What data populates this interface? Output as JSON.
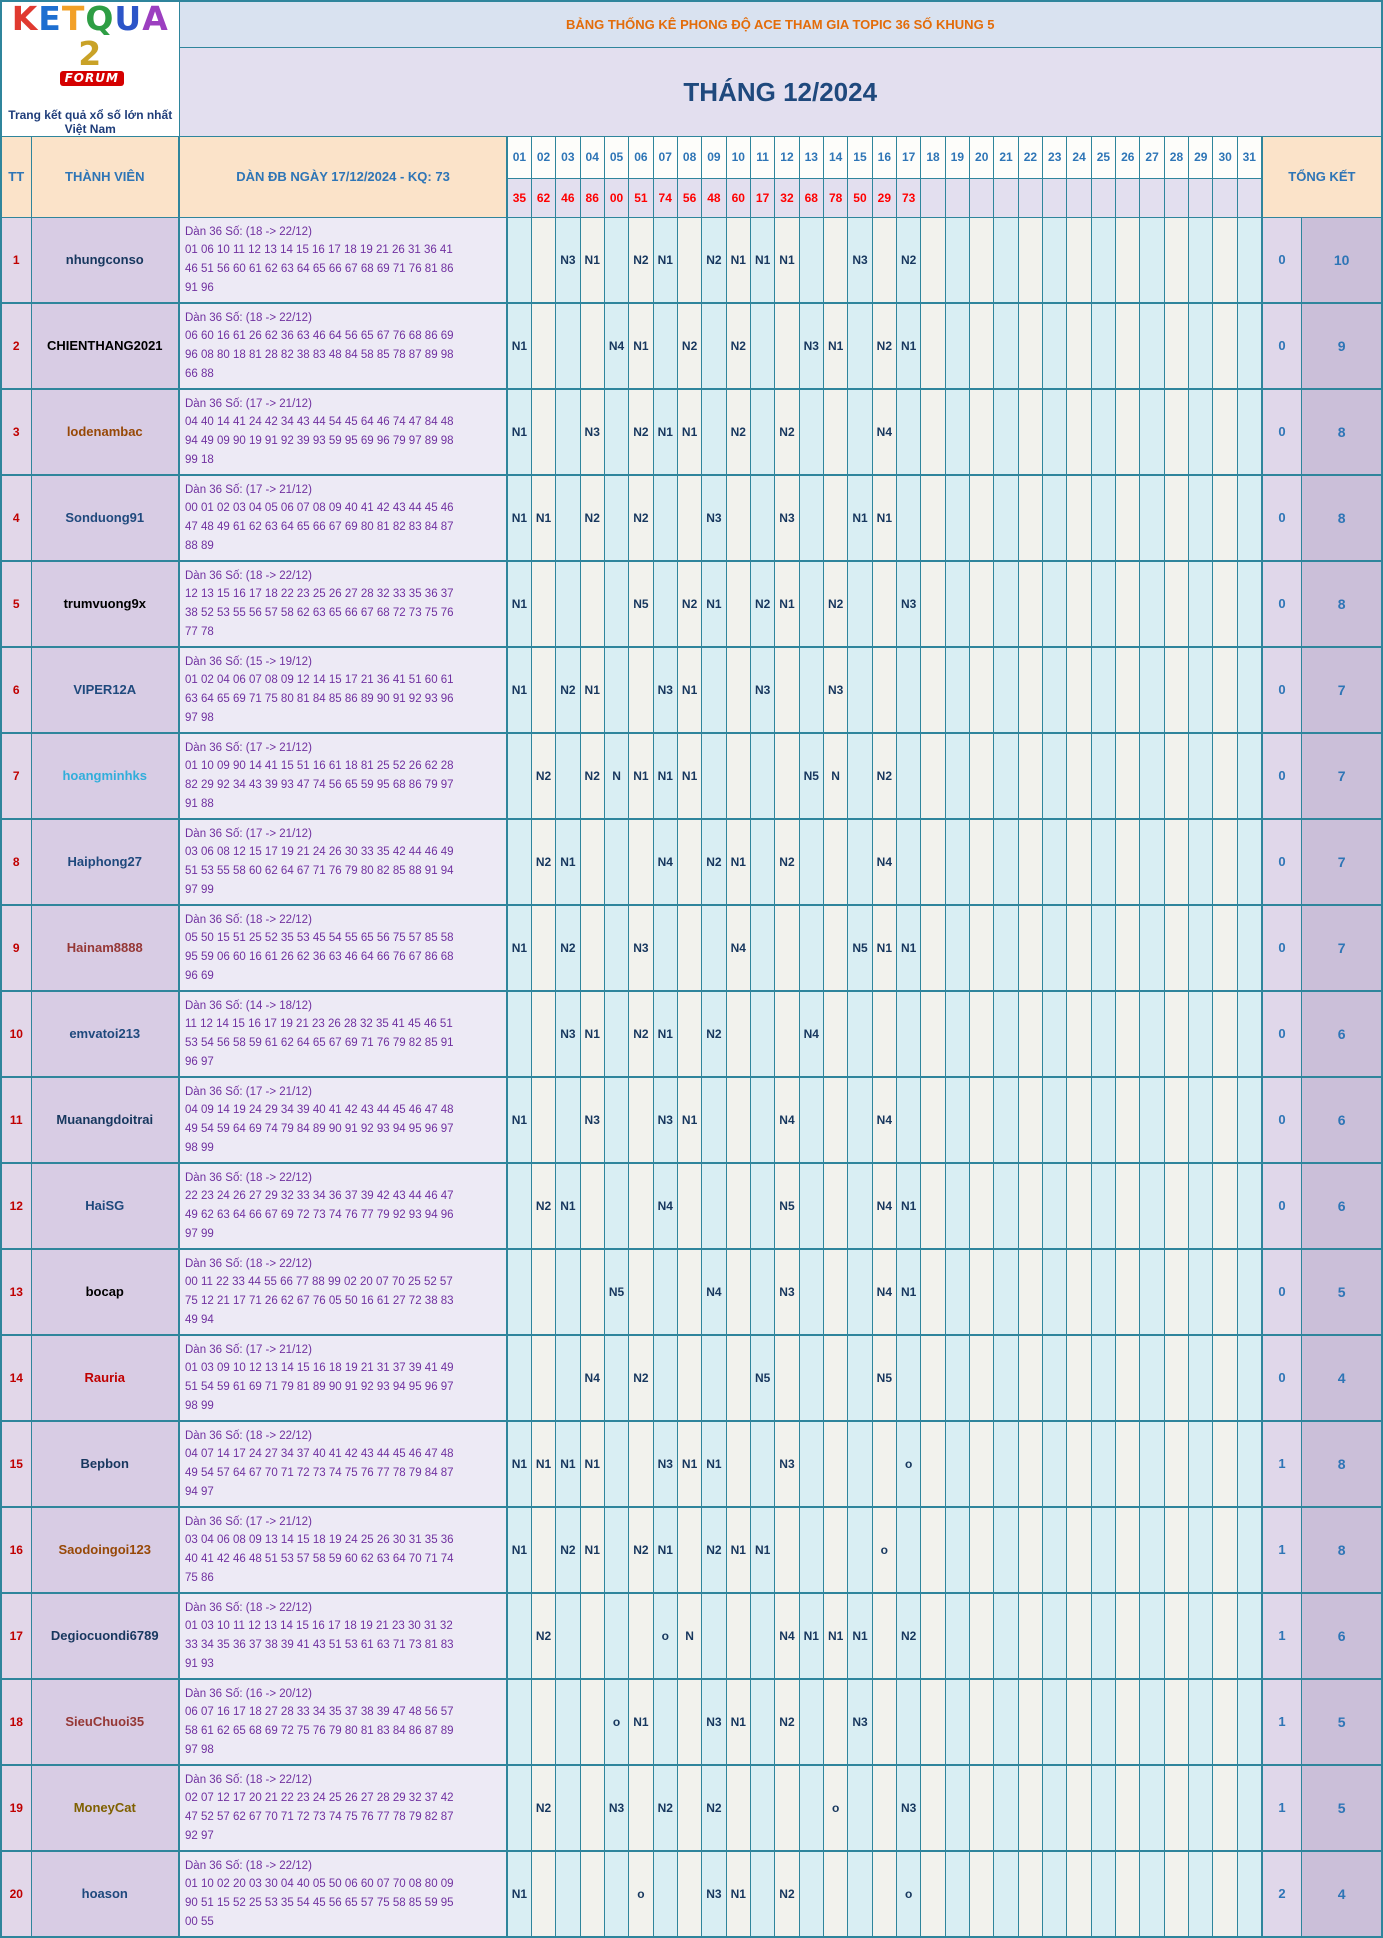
{
  "logo": {
    "brand_letters": [
      {
        "ch": "K",
        "color": "#E03A30"
      },
      {
        "ch": "E",
        "color": "#1E6FD0"
      },
      {
        "ch": "T",
        "color": "#F2A027"
      },
      {
        "ch": "Q",
        "color": "#2E9E44"
      },
      {
        "ch": "U",
        "color": "#2C55C8"
      },
      {
        "ch": "A",
        "color": "#9C3FC0"
      },
      {
        "ch": "2",
        "color": "#C9A227"
      }
    ],
    "forum_badge": "FORUM",
    "tagline": "Trang kết quả xổ số lớn nhất Việt Nam"
  },
  "titles": {
    "banner": "BẢNG THỐNG KÊ PHONG ĐỘ ACE THAM GIA TOPIC 36 SỐ KHUNG 5",
    "month": "THÁNG 12/2024"
  },
  "header": {
    "tt": "TT",
    "member": "THÀNH VIÊN",
    "dan": "DÀN ĐB NGÀY 17/12/2024 - KQ: 73",
    "total": "TỔNG KẾT"
  },
  "days": [
    "01",
    "02",
    "03",
    "04",
    "05",
    "06",
    "07",
    "08",
    "09",
    "10",
    "11",
    "12",
    "13",
    "14",
    "15",
    "16",
    "17",
    "18",
    "19",
    "20",
    "21",
    "22",
    "23",
    "24",
    "25",
    "26",
    "27",
    "28",
    "29",
    "30",
    "31"
  ],
  "day_values": [
    "35",
    "62",
    "46",
    "86",
    "00",
    "51",
    "74",
    "56",
    "48",
    "60",
    "17",
    "32",
    "68",
    "78",
    "50",
    "29",
    "73",
    "",
    "",
    "",
    "",
    "",
    "",
    "",
    "",
    "",
    "",
    "",
    "",
    "",
    ""
  ],
  "colors": {
    "border_teal": "#2F859C",
    "banner_text": "#E36C09",
    "month_text": "#1F497D",
    "day_value_red": "#FF0000",
    "mark_blue": "#17375E",
    "dan_purple": "#7030A0",
    "tt_red": "#C00000",
    "total_blue": "#2E75B6"
  },
  "rows": [
    {
      "tt": "1",
      "name": "nhungconso",
      "name_color": "#17375E",
      "range": "Dàn 36 Số: (18 -> 22/12)",
      "nums": [
        "01 06 10 11 12 13 14 15 16 17 18 19 21 26 31 36 41",
        "46 51 56 60 61 62 63 64 65 66 67 68 69 71 76 81 86",
        "91 96"
      ],
      "marks": {
        "3": "N3",
        "4": "N1",
        "6": "N2",
        "7": "N1",
        "9": "N2",
        "10": "N1",
        "11": "N1",
        "12": "N1",
        "15": "N3",
        "17": "N2"
      },
      "totals": [
        "0",
        "10"
      ]
    },
    {
      "tt": "2",
      "name": "CHIENTHANG2021",
      "name_color": "#000000",
      "range": "Dàn 36 Số: (18 -> 22/12)",
      "nums": [
        "06 60 16 61 26 62 36 63 46 64 56 65 67 76 68 86 69",
        "96 08 80 18 81 28 82 38 83 48 84 58 85 78 87 89 98",
        "66 88"
      ],
      "marks": {
        "1": "N1",
        "5": "N4",
        "6": "N1",
        "8": "N2",
        "10": "N2",
        "13": "N3",
        "14": "N1",
        "16": "N2",
        "17": "N1"
      },
      "totals": [
        "0",
        "9"
      ]
    },
    {
      "tt": "3",
      "name": "lodenambac",
      "name_color": "#974806",
      "range": "Dàn 36 Số: (17 -> 21/12)",
      "nums": [
        "04 40 14 41 24 42 34 43 44 54 45 64 46 74 47 84 48",
        "94 49 09 90 19 91 92 39 93 59 95 69 96 79 97 89 98",
        "99 18"
      ],
      "marks": {
        "1": "N1",
        "4": "N3",
        "6": "N2",
        "7": "N1",
        "8": "N1",
        "10": "N2",
        "12": "N2",
        "16": "N4"
      },
      "totals": [
        "0",
        "8"
      ]
    },
    {
      "tt": "4",
      "name": "Sonduong91",
      "name_color": "#1F497D",
      "range": "Dàn 36 Số: (17 -> 21/12)",
      "nums": [
        "00 01 02 03 04 05 06 07 08 09 40 41 42 43 44 45 46",
        "47 48 49 61 62 63 64 65 66 67 69 80 81 82 83 84 87",
        "88 89"
      ],
      "marks": {
        "1": "N1",
        "2": "N1",
        "4": "N2",
        "6": "N2",
        "9": "N3",
        "12": "N3",
        "15": "N1",
        "16": "N1"
      },
      "totals": [
        "0",
        "8"
      ]
    },
    {
      "tt": "5",
      "name": "trumvuong9x",
      "name_color": "#000000",
      "range": "Dàn 36 Số: (18 -> 22/12)",
      "nums": [
        "12 13 15 16 17 18 22 23 25 26 27 28 32 33 35 36 37",
        "38 52 53 55 56 57 58 62 63 65 66 67 68 72 73 75 76",
        "77 78"
      ],
      "marks": {
        "1": "N1",
        "6": "N5",
        "8": "N2",
        "9": "N1",
        "11": "N2",
        "12": "N1",
        "14": "N2",
        "17": "N3"
      },
      "totals": [
        "0",
        "8"
      ]
    },
    {
      "tt": "6",
      "name": "VIPER12A",
      "name_color": "#1F497D",
      "range": "Dàn 36 Số: (15 -> 19/12)",
      "nums": [
        "01 02 04 06 07 08 09 12 14 15 17 21 36 41 51 60 61",
        "63 64 65 69 71 75 80 81 84 85 86 89 90 91 92 93 96",
        "97 98"
      ],
      "marks": {
        "1": "N1",
        "3": "N2",
        "4": "N1",
        "7": "N3",
        "8": "N1",
        "11": "N3",
        "14": "N3"
      },
      "totals": [
        "0",
        "7"
      ]
    },
    {
      "tt": "7",
      "name": "hoangminhks",
      "name_color": "#31AEDB",
      "range": "Dàn 36 Số: (17 -> 21/12)",
      "nums": [
        "01 10 09 90 14 41 15 51 16 61 18 81 25 52 26 62 28",
        "82 29 92 34 43 39 93 47 74 56 65 59 95 68 86 79 97",
        "91 88"
      ],
      "marks": {
        "2": "N2",
        "4": "N2",
        "5": "N",
        "6": "N1",
        "7": "N1",
        "8": "N1",
        "13": "N5",
        "14": "N",
        "16": "N2"
      },
      "totals": [
        "0",
        "7"
      ]
    },
    {
      "tt": "8",
      "name": "Haiphong27",
      "name_color": "#1F497D",
      "range": "Dàn 36 Số: (17 -> 21/12)",
      "nums": [
        "03 06 08 12 15 17 19 21 24 26 30 33 35 42 44 46 49",
        "51 53 55 58 60 62 64 67 71 76 79 80 82 85 88 91 94",
        "97 99"
      ],
      "marks": {
        "2": "N2",
        "3": "N1",
        "7": "N4",
        "9": "N2",
        "10": "N1",
        "12": "N2",
        "16": "N4"
      },
      "totals": [
        "0",
        "7"
      ]
    },
    {
      "tt": "9",
      "name": "Hainam8888",
      "name_color": "#953735",
      "range": "Dàn 36 Số: (18 -> 22/12)",
      "nums": [
        "05 50 15 51 25 52 35 53 45 54 55 65 56 75 57 85 58",
        "95 59 06 60 16 61 26 62 36 63 46 64 66 76 67 86 68",
        "96 69"
      ],
      "marks": {
        "1": "N1",
        "3": "N2",
        "6": "N3",
        "10": "N4",
        "15": "N5",
        "16": "N1",
        "17": "N1"
      },
      "totals": [
        "0",
        "7"
      ]
    },
    {
      "tt": "10",
      "name": "emvatoi213",
      "name_color": "#1F497D",
      "range": "Dàn 36 Số: (14 -> 18/12)",
      "nums": [
        "11 12 14 15 16 17 19 21 23 26 28 32 35 41 45 46 51",
        "53 54 56 58 59 61 62 64 65 67 69 71 76 79 82 85 91",
        "96 97"
      ],
      "marks": {
        "3": "N3",
        "4": "N1",
        "6": "N2",
        "7": "N1",
        "9": "N2",
        "13": "N4"
      },
      "totals": [
        "0",
        "6"
      ]
    },
    {
      "tt": "11",
      "name": "Muanangdoitrai",
      "name_color": "#17375E",
      "range": "Dàn 36 Số: (17 -> 21/12)",
      "nums": [
        "04 09 14 19 24 29 34 39 40 41 42 43 44 45 46 47 48",
        "49 54 59 64 69 74 79 84 89 90 91 92 93 94 95 96 97",
        "98 99"
      ],
      "marks": {
        "1": "N1",
        "4": "N3",
        "7": "N3",
        "8": "N1",
        "12": "N4",
        "16": "N4"
      },
      "totals": [
        "0",
        "6"
      ]
    },
    {
      "tt": "12",
      "name": "HaiSG",
      "name_color": "#1F497D",
      "range": "Dàn 36 Số: (18 -> 22/12)",
      "nums": [
        "22 23 24 26 27 29 32 33 34 36 37 39 42 43 44 46 47",
        "49 62 63 64 66 67 69 72 73 74 76 77 79 92 93 94 96",
        "97 99"
      ],
      "marks": {
        "2": "N2",
        "3": "N1",
        "7": "N4",
        "12": "N5",
        "16": "N4",
        "17": "N1"
      },
      "totals": [
        "0",
        "6"
      ]
    },
    {
      "tt": "13",
      "name": "bocap",
      "name_color": "#000000",
      "range": "Dàn 36 Số: (18 -> 22/12)",
      "nums": [
        "00 11 22 33 44 55 66 77 88 99 02 20 07 70 25 52 57",
        "75 12 21 17 71 26 62 67 76 05 50 16 61 27 72 38 83",
        "49 94"
      ],
      "marks": {
        "5": "N5",
        "9": "N4",
        "12": "N3",
        "16": "N4",
        "17": "N1"
      },
      "totals": [
        "0",
        "5"
      ]
    },
    {
      "tt": "14",
      "name": "Rauria",
      "name_color": "#C00000",
      "range": "Dàn 36 Số: (17 -> 21/12)",
      "nums": [
        "01 03 09 10 12 13 14 15 16 18 19 21 31 37 39 41 49",
        "51 54 59 61 69 71 79 81 89 90 91 92 93 94 95 96 97",
        "98 99"
      ],
      "marks": {
        "4": "N4",
        "6": "N2",
        "11": "N5",
        "16": "N5"
      },
      "totals": [
        "0",
        "4"
      ]
    },
    {
      "tt": "15",
      "name": "Bepbon",
      "name_color": "#17375E",
      "range": "Dàn 36 Số: (18 -> 22/12)",
      "nums": [
        "04 07 14 17 24 27 34 37 40 41 42 43 44 45 46 47 48",
        "49 54 57 64 67 70 71 72 73 74 75 76 77 78 79 84 87",
        "94 97"
      ],
      "marks": {
        "1": "N1",
        "2": "N1",
        "3": "N1",
        "4": "N1",
        "7": "N3",
        "8": "N1",
        "9": "N1",
        "12": "N3",
        "17": "o"
      },
      "totals": [
        "1",
        "8"
      ]
    },
    {
      "tt": "16",
      "name": "Saodoingoi123",
      "name_color": "#974806",
      "range": "Dàn 36 Số: (17 -> 21/12)",
      "nums": [
        "03 04 06 08 09 13 14 15 18 19 24 25 26 30 31 35 36",
        "40 41 42 46 48 51 53 57 58 59 60 62 63 64 70 71 74",
        "75 86"
      ],
      "marks": {
        "1": "N1",
        "3": "N2",
        "4": "N1",
        "6": "N2",
        "7": "N1",
        "9": "N2",
        "10": "N1",
        "11": "N1",
        "16": "o"
      },
      "totals": [
        "1",
        "8"
      ]
    },
    {
      "tt": "17",
      "name": "Degiocuondi6789",
      "name_color": "#17375E",
      "range": "Dàn 36 Số: (18 -> 22/12)",
      "nums": [
        "01 03 10 11 12 13 14 15 16 17 18 19 21 23 30 31 32",
        "33 34 35 36 37 38 39 41 43 51 53 61 63 71 73 81 83",
        "91 93"
      ],
      "marks": {
        "2": "N2",
        "7": "o",
        "8": "N",
        "12": "N4",
        "13": "N1",
        "14": "N1",
        "15": "N1",
        "17": "N2"
      },
      "totals": [
        "1",
        "6"
      ]
    },
    {
      "tt": "18",
      "name": "SieuChuoi35",
      "name_color": "#953735",
      "range": "Dàn 36 Số: (16 -> 20/12)",
      "nums": [
        "06 07 16 17 18 27 28 33 34 35 37 38 39 47 48 56 57",
        "58 61 62 65 68 69 72 75 76 79 80 81 83 84 86 87 89",
        "97 98"
      ],
      "marks": {
        "5": "o",
        "6": "N1",
        "9": "N3",
        "10": "N1",
        "12": "N2",
        "15": "N3"
      },
      "totals": [
        "1",
        "5"
      ]
    },
    {
      "tt": "19",
      "name": "MoneyCat",
      "name_color": "#7F6000",
      "range": "Dàn 36 Số: (18 -> 22/12)",
      "nums": [
        "02 07 12 17 20 21 22 23 24 25 26 27 28 29 32 37 42",
        "47 52 57 62 67 70 71 72 73 74 75 76 77 78 79 82 87",
        "92 97"
      ],
      "marks": {
        "2": "N2",
        "5": "N3",
        "7": "N2",
        "9": "N2",
        "14": "o",
        "17": "N3"
      },
      "totals": [
        "1",
        "5"
      ]
    },
    {
      "tt": "20",
      "name": "hoason",
      "name_color": "#1F497D",
      "range": "Dàn 36 Số: (18 -> 22/12)",
      "nums": [
        "01 10 02 20 03 30 04 40 05 50 06 60 07 70 08 80 09",
        "90 51 15 52 25 53 35 54 45 56 65 57 75 58 85 59 95",
        "00 55"
      ],
      "marks": {
        "1": "N1",
        "6": "o",
        "9": "N3",
        "10": "N1",
        "12": "N2",
        "17": "o"
      },
      "totals": [
        "2",
        "4"
      ]
    }
  ]
}
